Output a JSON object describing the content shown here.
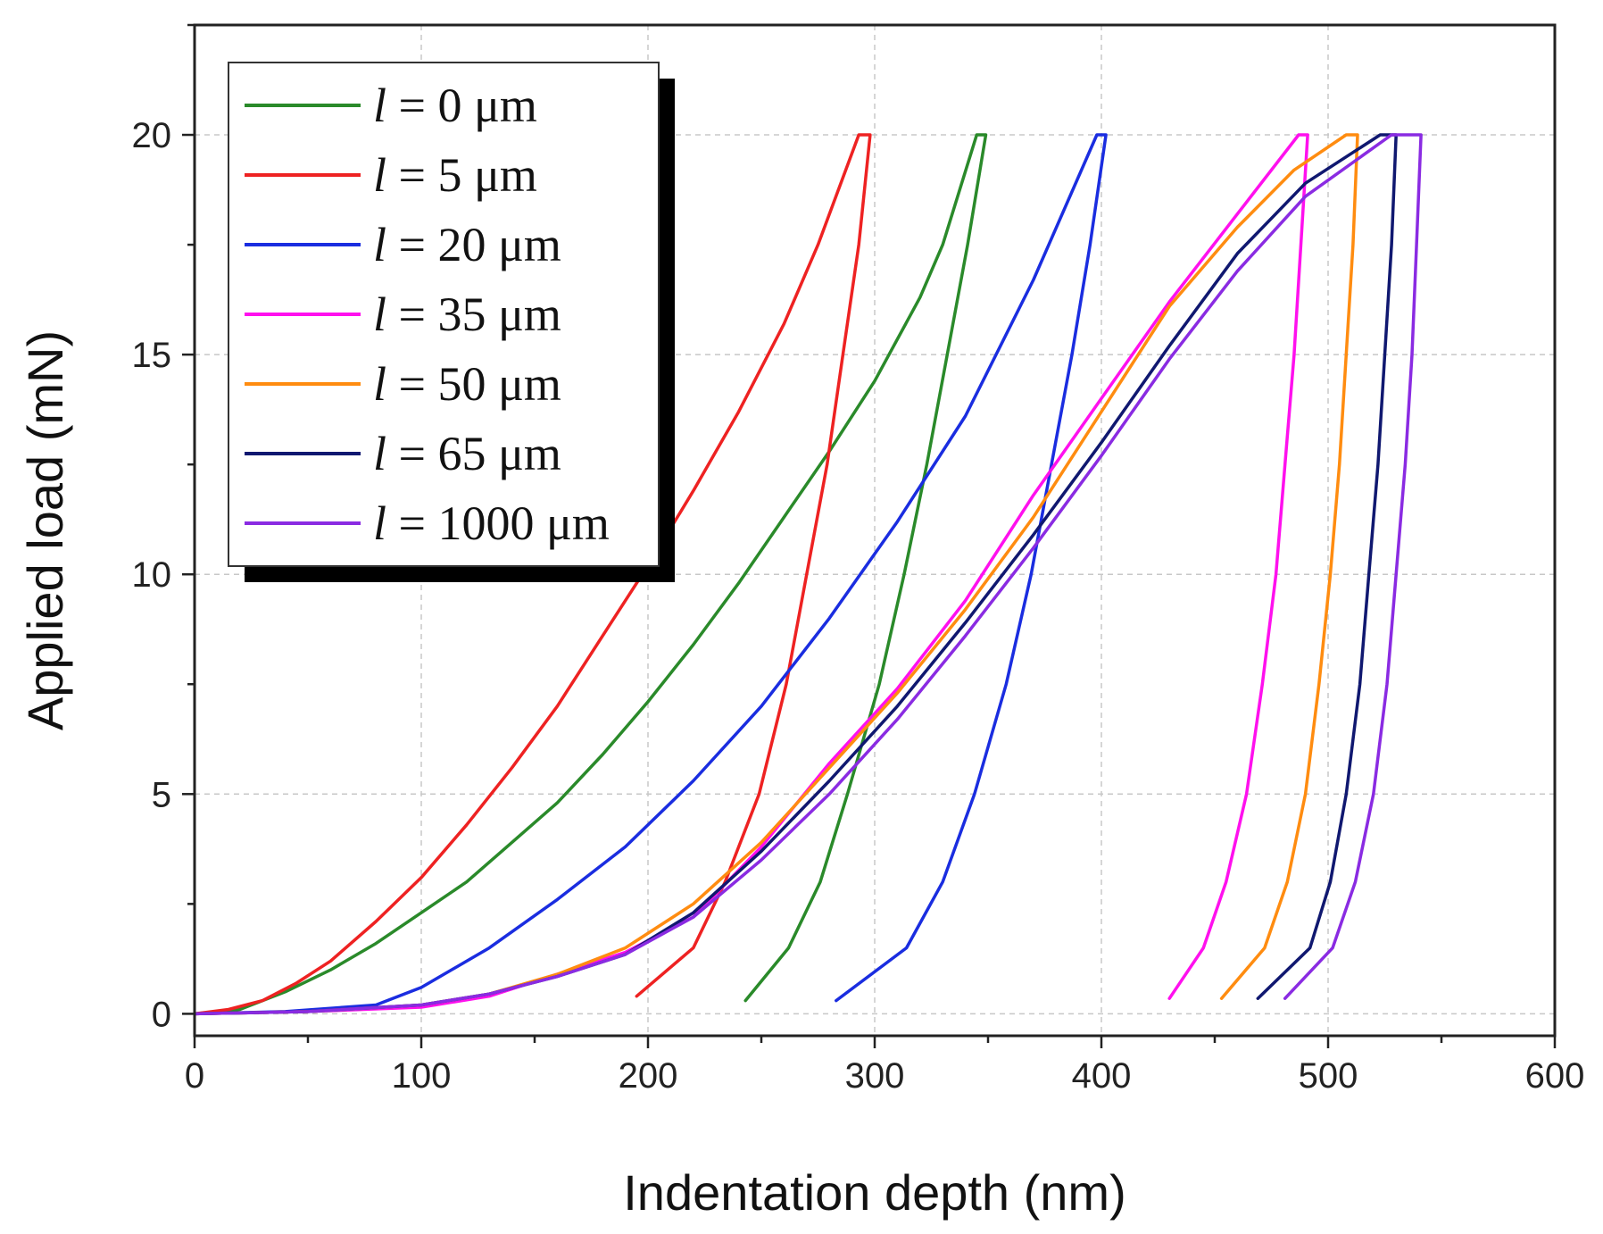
{
  "chart_data": {
    "type": "line",
    "title": "",
    "xlabel": "Indentation depth (nm)",
    "ylabel": "Applied load (mN)",
    "xlim": [
      0,
      600
    ],
    "ylim": [
      -0.5,
      22.5
    ],
    "xticks": [
      0,
      100,
      200,
      300,
      400,
      500,
      600
    ],
    "yticks": [
      0,
      5,
      10,
      15,
      20
    ],
    "xtick_labels": [
      "0",
      "100",
      "200",
      "300",
      "400",
      "500",
      "600"
    ],
    "ytick_labels": [
      "0",
      "5",
      "10",
      "15",
      "20"
    ],
    "grid": true,
    "legend_position": "top-left",
    "series": [
      {
        "name": "l = 0 μm",
        "symbol": "l",
        "rest": " = 0 μm",
        "color": "#2a8a2a",
        "loading": [
          [
            0,
            0
          ],
          [
            20,
            0.1
          ],
          [
            40,
            0.5
          ],
          [
            60,
            1.0
          ],
          [
            80,
            1.6
          ],
          [
            100,
            2.3
          ],
          [
            120,
            3.0
          ],
          [
            140,
            3.9
          ],
          [
            160,
            4.8
          ],
          [
            180,
            5.9
          ],
          [
            200,
            7.1
          ],
          [
            220,
            8.4
          ],
          [
            240,
            9.8
          ],
          [
            260,
            11.3
          ],
          [
            280,
            12.8
          ],
          [
            300,
            14.4
          ],
          [
            320,
            16.3
          ],
          [
            330,
            17.5
          ],
          [
            345,
            20.0
          ]
        ],
        "unloading": [
          [
            349,
            20.0
          ],
          [
            341,
            17.5
          ],
          [
            332,
            15.0
          ],
          [
            323,
            12.5
          ],
          [
            313,
            10.0
          ],
          [
            302,
            7.5
          ],
          [
            288,
            5.0
          ],
          [
            276,
            3.0
          ],
          [
            262,
            1.5
          ],
          [
            243,
            0.3
          ]
        ]
      },
      {
        "name": "l = 5 μm",
        "symbol": "l",
        "rest": " = 5 μm",
        "color": "#ee2222",
        "loading": [
          [
            0,
            0
          ],
          [
            15,
            0.1
          ],
          [
            30,
            0.3
          ],
          [
            45,
            0.7
          ],
          [
            60,
            1.2
          ],
          [
            80,
            2.1
          ],
          [
            100,
            3.1
          ],
          [
            120,
            4.3
          ],
          [
            140,
            5.6
          ],
          [
            160,
            7.0
          ],
          [
            180,
            8.6
          ],
          [
            200,
            10.2
          ],
          [
            220,
            11.9
          ],
          [
            240,
            13.7
          ],
          [
            260,
            15.7
          ],
          [
            275,
            17.5
          ],
          [
            293,
            20.0
          ]
        ],
        "unloading": [
          [
            298,
            20.0
          ],
          [
            293,
            17.5
          ],
          [
            286,
            15.0
          ],
          [
            279,
            12.5
          ],
          [
            270,
            10.0
          ],
          [
            261,
            7.5
          ],
          [
            249,
            5.0
          ],
          [
            234,
            3.0
          ],
          [
            220,
            1.5
          ],
          [
            195,
            0.4
          ]
        ]
      },
      {
        "name": "l = 20 μm",
        "symbol": "l",
        "rest": " = 20 μm",
        "color": "#1a2de0",
        "loading": [
          [
            0,
            0
          ],
          [
            40,
            0.05
          ],
          [
            80,
            0.2
          ],
          [
            100,
            0.6
          ],
          [
            130,
            1.5
          ],
          [
            160,
            2.6
          ],
          [
            190,
            3.8
          ],
          [
            220,
            5.3
          ],
          [
            250,
            7.0
          ],
          [
            280,
            9.0
          ],
          [
            310,
            11.2
          ],
          [
            340,
            13.6
          ],
          [
            370,
            16.7
          ],
          [
            398,
            20.0
          ]
        ],
        "unloading": [
          [
            402,
            20.0
          ],
          [
            395,
            17.5
          ],
          [
            387,
            15.0
          ],
          [
            378,
            12.5
          ],
          [
            369,
            10.0
          ],
          [
            358,
            7.5
          ],
          [
            344,
            5.0
          ],
          [
            330,
            3.0
          ],
          [
            314,
            1.5
          ],
          [
            283,
            0.3
          ]
        ]
      },
      {
        "name": "l = 35 μm",
        "symbol": "l",
        "rest": " = 35 μm",
        "color": "#ff10ee",
        "loading": [
          [
            0,
            0
          ],
          [
            50,
            0.05
          ],
          [
            100,
            0.15
          ],
          [
            130,
            0.4
          ],
          [
            160,
            0.9
          ],
          [
            190,
            1.4
          ],
          [
            220,
            2.2
          ],
          [
            250,
            3.8
          ],
          [
            280,
            5.7
          ],
          [
            310,
            7.4
          ],
          [
            340,
            9.4
          ],
          [
            370,
            11.8
          ],
          [
            400,
            14.0
          ],
          [
            430,
            16.2
          ],
          [
            460,
            18.2
          ],
          [
            487,
            20.0
          ]
        ],
        "unloading": [
          [
            491,
            20.0
          ],
          [
            488,
            17.5
          ],
          [
            485,
            15.0
          ],
          [
            481,
            12.5
          ],
          [
            477,
            10.0
          ],
          [
            471,
            7.5
          ],
          [
            464,
            5.0
          ],
          [
            455,
            3.0
          ],
          [
            445,
            1.5
          ],
          [
            430,
            0.35
          ]
        ]
      },
      {
        "name": "l = 50 μm",
        "symbol": "l",
        "rest": " = 50 μm",
        "color": "#ff8c10",
        "loading": [
          [
            0,
            0
          ],
          [
            50,
            0.05
          ],
          [
            100,
            0.2
          ],
          [
            130,
            0.45
          ],
          [
            160,
            0.9
          ],
          [
            190,
            1.5
          ],
          [
            220,
            2.5
          ],
          [
            250,
            3.9
          ],
          [
            280,
            5.6
          ],
          [
            310,
            7.3
          ],
          [
            340,
            9.2
          ],
          [
            370,
            11.3
          ],
          [
            400,
            13.7
          ],
          [
            430,
            16.1
          ],
          [
            460,
            17.9
          ],
          [
            485,
            19.2
          ],
          [
            508,
            20.0
          ]
        ],
        "unloading": [
          [
            513,
            20.0
          ],
          [
            511,
            17.5
          ],
          [
            508,
            15.0
          ],
          [
            505,
            12.5
          ],
          [
            501,
            10.0
          ],
          [
            496,
            7.5
          ],
          [
            490,
            5.0
          ],
          [
            482,
            3.0
          ],
          [
            472,
            1.5
          ],
          [
            453,
            0.35
          ]
        ]
      },
      {
        "name": "l = 65 μm",
        "symbol": "l",
        "rest": " = 65 μm",
        "color": "#101870",
        "loading": [
          [
            0,
            0
          ],
          [
            50,
            0.05
          ],
          [
            100,
            0.2
          ],
          [
            130,
            0.45
          ],
          [
            160,
            0.85
          ],
          [
            190,
            1.35
          ],
          [
            220,
            2.3
          ],
          [
            250,
            3.7
          ],
          [
            280,
            5.3
          ],
          [
            310,
            7.0
          ],
          [
            340,
            8.9
          ],
          [
            370,
            10.9
          ],
          [
            400,
            13.0
          ],
          [
            430,
            15.2
          ],
          [
            460,
            17.3
          ],
          [
            490,
            18.9
          ],
          [
            523,
            20.0
          ]
        ],
        "unloading": [
          [
            530,
            20.0
          ],
          [
            528,
            17.5
          ],
          [
            525,
            15.0
          ],
          [
            522,
            12.5
          ],
          [
            518,
            10.0
          ],
          [
            514,
            7.5
          ],
          [
            508,
            5.0
          ],
          [
            501,
            3.0
          ],
          [
            492,
            1.5
          ],
          [
            469,
            0.35
          ]
        ]
      },
      {
        "name": "l = 1000 μm",
        "symbol": "l",
        "rest": " = 1000 μm",
        "color": "#8a2be2",
        "loading": [
          [
            0,
            0
          ],
          [
            50,
            0.05
          ],
          [
            100,
            0.2
          ],
          [
            130,
            0.45
          ],
          [
            160,
            0.85
          ],
          [
            190,
            1.35
          ],
          [
            220,
            2.2
          ],
          [
            250,
            3.5
          ],
          [
            280,
            5.0
          ],
          [
            310,
            6.7
          ],
          [
            340,
            8.6
          ],
          [
            370,
            10.6
          ],
          [
            400,
            12.7
          ],
          [
            430,
            14.9
          ],
          [
            460,
            16.9
          ],
          [
            490,
            18.6
          ],
          [
            528,
            20.0
          ]
        ],
        "unloading": [
          [
            541,
            20.0
          ],
          [
            539,
            17.5
          ],
          [
            537,
            15.0
          ],
          [
            534,
            12.5
          ],
          [
            530,
            10.0
          ],
          [
            526,
            7.5
          ],
          [
            520,
            5.0
          ],
          [
            512,
            3.0
          ],
          [
            502,
            1.5
          ],
          [
            481,
            0.35
          ]
        ]
      }
    ]
  }
}
